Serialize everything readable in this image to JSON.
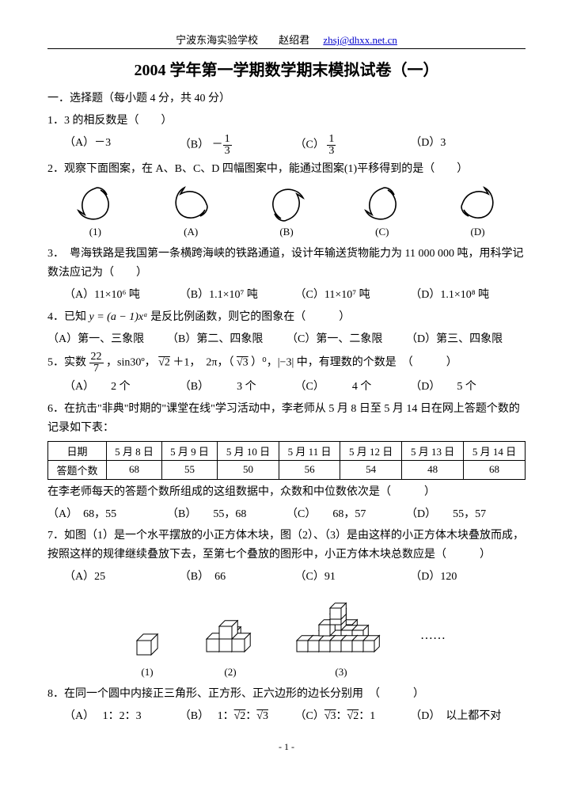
{
  "header": {
    "school_author": "宁波东海实验学校　　赵绍君",
    "email": "zhsj@dhxx.net.cn"
  },
  "title": "2004 学年第一学期数学期末模拟试卷（一）",
  "section1": "一．选择题（每小题 4 分，共 40 分）",
  "q1": {
    "stem": "1．3 的相反数是（　　）",
    "A": "（A）－3",
    "B": "（B）",
    "B_frac_num": "1",
    "B_frac_den": "3",
    "B_prefix": "－",
    "C": "（C）",
    "C_frac_num": "1",
    "C_frac_den": "3",
    "D": "（D）3"
  },
  "q2": {
    "stem": "2．观察下面图案，在 A、B、C、D 四幅图案中，能通过图案(1)平移得到的是（　　）",
    "labels": [
      "(1)",
      "(A)",
      "(B)",
      "(C)",
      "(D)"
    ],
    "rotations": [
      0,
      90,
      180,
      0,
      270
    ],
    "flip": [
      false,
      false,
      false,
      false,
      true
    ],
    "stroke": "#000000"
  },
  "q3": {
    "stem": "3．　粤海铁路是我国第一条横跨海峡的铁路通道，设计年输送货物能力为 11 000 000 吨，用科学记数法应记为（　　）",
    "A": "（A）11×10⁶ 吨",
    "B": "（B）1.1×10⁷ 吨",
    "C": "（C）11×10⁷ 吨",
    "D": "（D）1.1×10⁸ 吨"
  },
  "q4": {
    "stem_pre": "4．已知 ",
    "formula": "y = (a − 1)xᵃ",
    "stem_post": " 是反比例函数，则它的图象在（　　　）",
    "A": "（A）第一、三象限",
    "B": "（B）第二、四象限",
    "C": "（C）第一、二象限",
    "D": "（D）第三、四象限"
  },
  "q5": {
    "stem_pre": "5．实数",
    "frac_num": "22",
    "frac_den": "7",
    "stem_mid1": "，sin30º，",
    "sqrt2": "√2",
    "plus1": " ＋1，　2π，（",
    "sqrt3": "√3",
    "stem_mid2": "）⁰，|−3| 中，有理数的个数是　（　　　）",
    "A": "（A）　　2 个",
    "B": "（B）　　　3 个",
    "C": "（C）　　　4 个",
    "D": "（D）　　5 个"
  },
  "q6": {
    "stem": "6．在抗击\"非典\"时期的\"课堂在线\"学习活动中，李老师从 5 月 8 日至 5 月 14 日在网上答题个数的记录如下表：",
    "table": {
      "header": [
        "日期",
        "5 月 8 日",
        "5 月 9 日",
        "5 月 10 日",
        "5 月 11 日",
        "5 月 12 日",
        "5 月 13 日",
        "5 月 14 日"
      ],
      "row_label": "答题个数",
      "values": [
        "68",
        "55",
        "50",
        "56",
        "54",
        "48",
        "68"
      ]
    },
    "tail": "在李老师每天的答题个数所组成的这组数据中，众数和中位数依次是（　　　）",
    "A": "（A）　68，55",
    "B": "（B）　　55，68",
    "C": "（C）　　68，57",
    "D": "（D）　　55，57"
  },
  "q7": {
    "stem": "7．如图（1）是一个水平摆放的小正方体木块，图（2）、（3）是由这样的小正方体木块叠放而成，按照这样的规律继续叠放下去，至第七个叠放的图形中，小正方体木块总数应是（　　　）",
    "A": "（A）25",
    "B": "（B）　66",
    "C": "（C）91",
    "D": "（D）120",
    "labels": [
      "(1)",
      "(2)",
      "(3)"
    ],
    "dots": "……",
    "cube_stroke": "#000000",
    "cube_fill": "#ffffff"
  },
  "q8": {
    "stem": "8．在同一个圆中内接正三角形、正方形、正六边形的边长分别用　（　　　）",
    "A": "（A）　 1：2：3",
    "B_pre": "（B）　 1：",
    "B_s2": "√2",
    "B_mid": "：",
    "B_s3": "√3",
    "C_pre": "（C）",
    "C_s3": "√3",
    "C_mid": "：",
    "C_s2": "√2",
    "C_post": "：1",
    "D": "（D）　以上都不对"
  },
  "footer": "- 1 -"
}
